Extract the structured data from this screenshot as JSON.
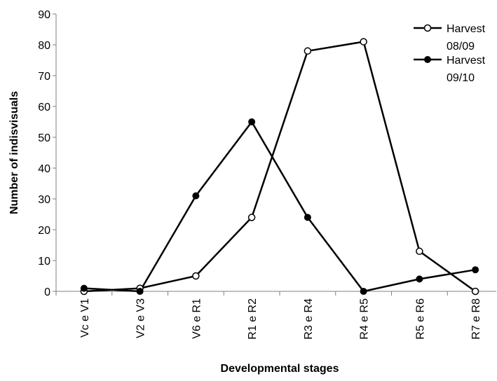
{
  "chart_data": {
    "type": "line",
    "title": "",
    "xlabel": "Developmental stages",
    "ylabel": "Number of indisvisuals",
    "categories": [
      "Vc e V1",
      "V2 e V3",
      "V6 e R1",
      "R1 e R2",
      "R3 e R4",
      "R4 e R5",
      "R5 e R6",
      "R7 e R8"
    ],
    "ylim": [
      0,
      90
    ],
    "yticks": [
      0,
      10,
      20,
      30,
      40,
      50,
      60,
      70,
      80,
      90
    ],
    "grid": false,
    "legend_position": "top-right",
    "series": [
      {
        "name": "Harvest 08/09",
        "name_lines": [
          "Harvest",
          "08/09"
        ],
        "marker": "open-circle",
        "values": [
          0,
          1,
          5,
          24,
          78,
          81,
          13,
          0
        ]
      },
      {
        "name": "Harvest 09/10",
        "name_lines": [
          "Harvest",
          "09/10"
        ],
        "marker": "filled-circle",
        "values": [
          1,
          0,
          31,
          55,
          24,
          0,
          4,
          7
        ]
      }
    ],
    "colors": {
      "line": "#000000",
      "axis": "#7f7f7f",
      "background": "#ffffff"
    }
  }
}
